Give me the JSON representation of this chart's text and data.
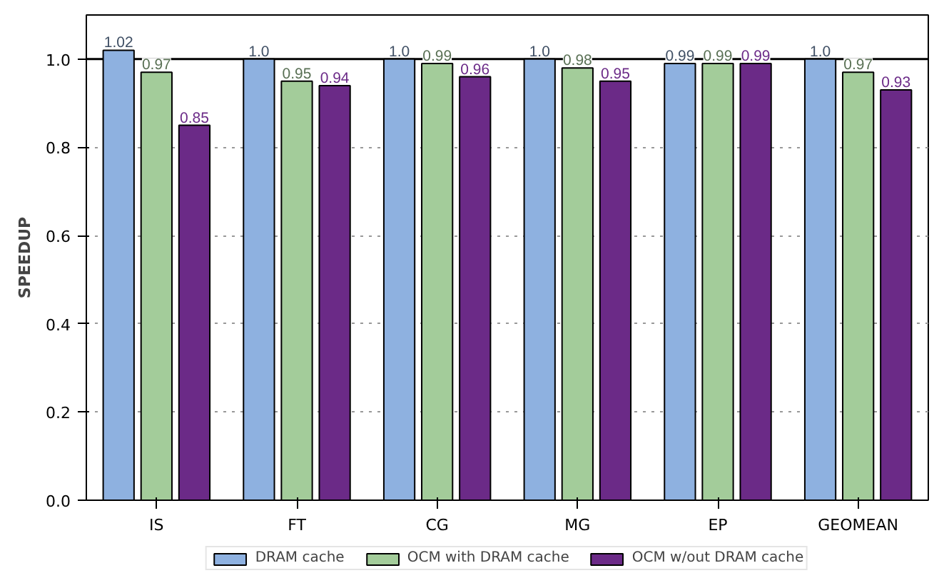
{
  "chart_data": {
    "type": "bar",
    "ylabel": "SPEEDUP",
    "categories": [
      "IS",
      "FT",
      "CG",
      "MG",
      "EP",
      "GEOMEAN"
    ],
    "series": [
      {
        "name": "DRAM cache",
        "color": "#8eb1e0",
        "values": [
          1.02,
          1.0,
          1.0,
          1.0,
          0.99,
          1.0
        ],
        "value_labels": [
          "1.02",
          "1.0",
          "1.0",
          "1.0",
          "0.99",
          "1.0"
        ]
      },
      {
        "name": "OCM with DRAM cache",
        "color": "#a3cc9a",
        "values": [
          0.97,
          0.95,
          0.99,
          0.98,
          0.99,
          0.97
        ],
        "value_labels": [
          "0.97",
          "0.95",
          "0.99",
          "0.98",
          "0.99",
          "0.97"
        ]
      },
      {
        "name": "OCM w/out DRAM cache",
        "color": "#6b2a87",
        "values": [
          0.85,
          0.94,
          0.96,
          0.95,
          0.99,
          0.93
        ],
        "value_labels": [
          "0.85",
          "0.94",
          "0.96",
          "0.95",
          "0.99",
          "0.93"
        ]
      }
    ],
    "ylim": [
      0,
      1.1
    ],
    "yticks": [
      {
        "value": 0,
        "label": "0.0"
      },
      {
        "value": 0.2,
        "label": "0.2"
      },
      {
        "value": 0.4,
        "label": "0.4"
      },
      {
        "value": 0.6,
        "label": "0.6"
      },
      {
        "value": 0.8,
        "label": "0.8"
      },
      {
        "value": 1.0,
        "label": "1.0"
      }
    ],
    "ref_lines": [
      {
        "axis": "y",
        "value": 1.0,
        "color": "#000000",
        "line_style": "solid"
      }
    ],
    "grid": "y",
    "legend": "bottom"
  }
}
